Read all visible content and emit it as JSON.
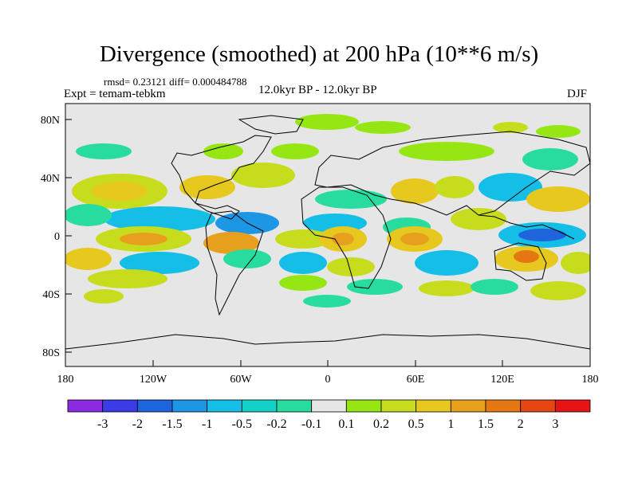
{
  "title": "Divergence (smoothed) at 200 hPa (10**6 m/s)",
  "stats": "rmsd= 0.23121 diff= 0.000484788",
  "experiment": "Expt = temam-tebkm",
  "period": "12.0kyr BP - 12.0kyr BP",
  "season": "DJF",
  "y_ticks": [
    "80N",
    "40N",
    "0",
    "40S",
    "80S"
  ],
  "x_ticks": [
    "180",
    "120W",
    "60W",
    "0",
    "60E",
    "120E",
    "180"
  ],
  "colorbar": {
    "colors": [
      "#8a2be2",
      "#3c3ce6",
      "#1e64dc",
      "#1e96e6",
      "#14bee6",
      "#14d2c8",
      "#28dca0",
      "#e6e6e6",
      "#96e614",
      "#c8dc1e",
      "#e6c81e",
      "#e6a01e",
      "#e67814",
      "#e64614",
      "#e61414"
    ],
    "labels": [
      "-3",
      "-2",
      "-1.5",
      "-1",
      "-0.5",
      "-0.2",
      "-0.1",
      "0.1",
      "0.2",
      "0.5",
      "1",
      "1.5",
      "2",
      "3"
    ]
  },
  "map": {
    "background_color": "#e6e6e6",
    "coast_color": "#000000",
    "bands": {
      "green": "#96e614",
      "olive": "#c8dc1e",
      "yellow": "#e6c81e",
      "orange": "#e6a01e",
      "red": "#e67814",
      "cyan": "#14bee6",
      "teal": "#28dca0",
      "blue": "#1e96e6",
      "deep_blue": "#1e64dc"
    }
  }
}
